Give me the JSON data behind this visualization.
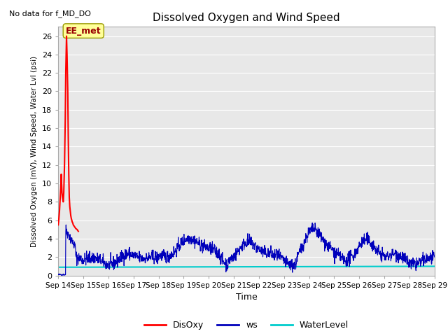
{
  "title": "Dissolved Oxygen and Wind Speed",
  "xlabel": "Time",
  "ylabel": "Dissolved Oxygen (mV), Wind Speed, Water Lvl (psi)",
  "top_left_text": "No data for f_MD_DO",
  "annotation_text": "EE_met",
  "ylim": [
    0,
    27
  ],
  "yticks": [
    0,
    2,
    4,
    6,
    8,
    10,
    12,
    14,
    16,
    18,
    20,
    22,
    24,
    26
  ],
  "xtick_labels": [
    "Sep 14",
    "Sep 15",
    "Sep 16",
    "Sep 17",
    "Sep 18",
    "Sep 19",
    "Sep 20",
    "Sep 21",
    "Sep 22",
    "Sep 23",
    "Sep 24",
    "Sep 25",
    "Sep 26",
    "Sep 27",
    "Sep 28",
    "Sep 29"
  ],
  "color_disoxy": "#ff0000",
  "color_ws": "#0000bb",
  "color_wl": "#00cccc",
  "bg_color": "#ffffff",
  "plot_bg": "#e8e8e8",
  "annotation_box_color": "#ffff99",
  "annotation_text_color": "#990000",
  "grid_color": "#ffffff"
}
